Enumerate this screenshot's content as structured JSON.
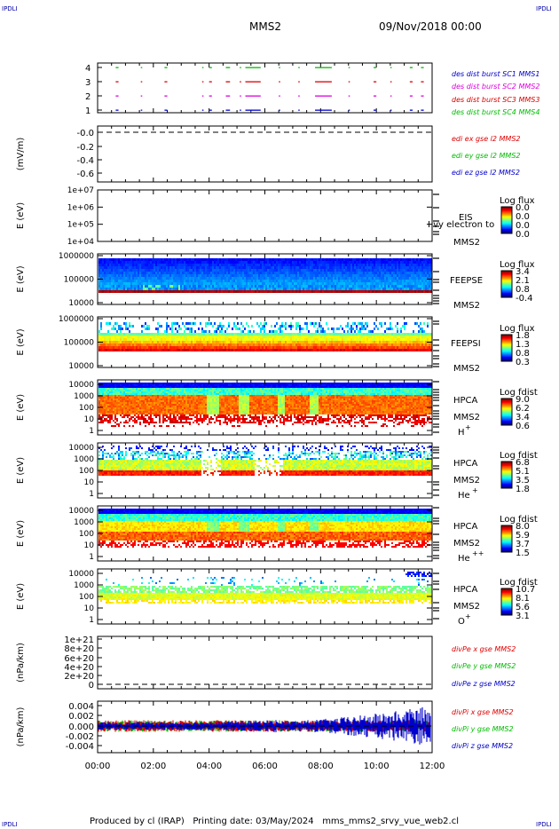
{
  "corner_marks": {
    "tl": "IPDLI",
    "tr": "IPDLI",
    "bl": "IPDLI",
    "br": "IPDLI"
  },
  "header": {
    "spacecraft": "MMS2",
    "datetime": "09/Nov/2018 00:00"
  },
  "footer": {
    "text": "Produced by cl (IRAP)   Printing date: 03/May/2024   mms_mms2_srvy_vue_web2.cl"
  },
  "time_axis": {
    "ticks": [
      "00:00",
      "02:00",
      "04:00",
      "06:00",
      "08:00",
      "10:00",
      "12:00"
    ]
  },
  "colors": {
    "black": "#000000",
    "blue": "#0000cc",
    "magenta": "#dd00dd",
    "red": "#dd0000",
    "green": "#00bb00"
  },
  "panels": {
    "burst": {
      "ticks": [
        "4",
        "3",
        "2",
        "1"
      ],
      "legend": [
        "des dist burst SC1 MMS1",
        "des dist burst SC2 MMS2",
        "des dist burst SC3 MMS3",
        "des dist burst SC4 MMS4"
      ]
    },
    "edi": {
      "ylabel": "(mV/m)",
      "ticks": [
        "-0.0",
        "-0.2",
        "-0.4",
        "-0.6"
      ],
      "legend": [
        "edi ex gse l2 MMS2",
        "edi ey gse l2 MMS2",
        "edi ez gse l2 MMS2"
      ]
    },
    "eis": {
      "ylabel": "E (eV)",
      "ticks": [
        "1e+07",
        "1e+06",
        "1e+05",
        "1e+04"
      ],
      "name": "EIS",
      "overlay": "I  vy electron to",
      "sc": "MMS2",
      "cb_title": "Log flux",
      "cb_ticks": [
        "0.0",
        "0.0",
        "0.0",
        "0.0"
      ]
    },
    "feepse": {
      "ylabel": "E (eV)",
      "ticks": [
        "1000000",
        "100000",
        "10000"
      ],
      "name": "FEEPSE",
      "sc": "MMS2",
      "cb_title": "Log flux",
      "cb_ticks": [
        "3.4",
        "2.1",
        "0.8",
        "-0.4"
      ]
    },
    "feepsi": {
      "ylabel": "E (eV)",
      "ticks": [
        "1000000",
        "100000",
        "10000"
      ],
      "name": "FEEPSI",
      "sc": "MMS2",
      "cb_title": "Log flux",
      "cb_ticks": [
        "1.8",
        "1.3",
        "0.8",
        "0.3"
      ]
    },
    "hpca_h": {
      "ylabel": "E (eV)",
      "ticks": [
        "10000",
        "1000",
        "100",
        "10",
        "1"
      ],
      "name": "HPCA",
      "sc": "MMS2",
      "species": "H",
      "charge": "+",
      "cb_title": "Log fdist",
      "cb_ticks": [
        "9.0",
        "6.2",
        "3.4",
        "0.6"
      ]
    },
    "hpca_he": {
      "ylabel": "E (eV)",
      "ticks": [
        "10000",
        "1000",
        "100",
        "10",
        "1"
      ],
      "name": "HPCA",
      "sc": "MMS2",
      "species": "He",
      "charge": "+",
      "cb_title": "Log fdist",
      "cb_ticks": [
        "6.8",
        "5.1",
        "3.5",
        "1.8"
      ]
    },
    "hpca_he2": {
      "ylabel": "E (eV)",
      "ticks": [
        "10000",
        "1000",
        "100",
        "10",
        "1"
      ],
      "name": "HPCA",
      "sc": "MMS2",
      "species": "He",
      "charge": "++",
      "cb_title": "Log fdist",
      "cb_ticks": [
        "8.0",
        "5.9",
        "3.7",
        "1.5"
      ]
    },
    "hpca_o": {
      "ylabel": "E (eV)",
      "ticks": [
        "10000",
        "1000",
        "100",
        "10",
        "1"
      ],
      "name": "HPCA",
      "sc": "MMS2",
      "species": "O",
      "charge": "+",
      "cb_title": "Log fdist",
      "cb_ticks": [
        "10.7",
        "8.1",
        "5.6",
        "3.1"
      ]
    },
    "divpe": {
      "ylabel": "(nPa/km)",
      "ticks": [
        "1e+21",
        "8e+20",
        "6e+20",
        "4e+20",
        "2e+20",
        "0"
      ],
      "legend": [
        "divPe x gse MMS2",
        "divPe y gse MMS2",
        "divPe z gse MMS2"
      ]
    },
    "divpi": {
      "ylabel": "(nPa/km)",
      "ticks": [
        "0.004",
        "0.002",
        "0.000",
        "-0.002",
        "-0.004"
      ],
      "legend": [
        "divPi x gse MMS2",
        "divPi y gse MMS2",
        "divPi z gse MMS2"
      ]
    }
  },
  "chart_data": [
    {
      "type": "scatter",
      "panel": "burst",
      "xlabel": "",
      "ylabel": "",
      "x_range": [
        "00:00",
        "12:00"
      ],
      "ylim": [
        0.5,
        4.5
      ],
      "grid": false,
      "series": [
        {
          "name": "des dist burst SC1 MMS1",
          "y": 1,
          "color": "#0000cc"
        },
        {
          "name": "des dist burst SC2 MMS2",
          "y": 2,
          "color": "#dd00dd"
        },
        {
          "name": "des dist burst SC3 MMS3",
          "y": 3,
          "color": "#dd0000"
        },
        {
          "name": "des dist burst SC4 MMS4",
          "y": 4,
          "color": "#00bb00"
        }
      ],
      "bursts_hours": [
        [
          0.65,
          0.75
        ],
        [
          1.55,
          1.6
        ],
        [
          2.4,
          2.5
        ],
        [
          3.75,
          3.8
        ],
        [
          4.0,
          4.1
        ],
        [
          4.6,
          4.75
        ],
        [
          5.1,
          5.15
        ],
        [
          5.3,
          5.85
        ],
        [
          6.5,
          6.55
        ],
        [
          7.2,
          7.25
        ],
        [
          7.8,
          8.4
        ],
        [
          9.0,
          9.05
        ],
        [
          9.9,
          10.0
        ],
        [
          10.5,
          10.55
        ],
        [
          11.2,
          11.3
        ],
        [
          11.6,
          11.7
        ]
      ]
    },
    {
      "type": "line",
      "panel": "edi",
      "ylabel": "(mV/m)",
      "ylim": [
        -0.7,
        0.05
      ],
      "series": [
        {
          "name": "edi ex gse l2 MMS2",
          "values": []
        },
        {
          "name": "edi ey gse l2 MMS2",
          "values": []
        },
        {
          "name": "edi ez gse l2 MMS2",
          "values": []
        }
      ],
      "reference_line": -0.0
    },
    {
      "type": "heatmap",
      "panel": "eis",
      "ylabel": "E (eV)",
      "yscale": "log",
      "ylim": [
        10000.0,
        10000000.0
      ],
      "values": []
    },
    {
      "type": "heatmap",
      "panel": "feepse",
      "ylabel": "E (eV)",
      "yscale": "log",
      "ylim": [
        10000.0,
        1000000.0
      ],
      "clim": [
        -0.4,
        3.4
      ]
    },
    {
      "type": "heatmap",
      "panel": "feepsi",
      "ylabel": "E (eV)",
      "yscale": "log",
      "ylim": [
        10000.0,
        1000000.0
      ],
      "clim": [
        0.3,
        1.8
      ]
    },
    {
      "type": "heatmap",
      "panel": "hpca_h",
      "ylabel": "E (eV)",
      "yscale": "log",
      "ylim": [
        1,
        30000.0
      ],
      "clim": [
        0.6,
        9.0
      ]
    },
    {
      "type": "heatmap",
      "panel": "hpca_he",
      "ylabel": "E (eV)",
      "yscale": "log",
      "ylim": [
        1,
        30000.0
      ],
      "clim": [
        1.8,
        6.8
      ]
    },
    {
      "type": "heatmap",
      "panel": "hpca_he2",
      "ylabel": "E (eV)",
      "yscale": "log",
      "ylim": [
        1,
        30000.0
      ],
      "clim": [
        1.5,
        8.0
      ]
    },
    {
      "type": "heatmap",
      "panel": "hpca_o",
      "ylabel": "E (eV)",
      "yscale": "log",
      "ylim": [
        1,
        30000.0
      ],
      "clim": [
        3.1,
        10.7
      ]
    },
    {
      "type": "line",
      "panel": "divpe",
      "ylabel": "(nPa/km)",
      "ylim": [
        0,
        1e+21
      ],
      "reference_line": 0,
      "series": [
        {
          "name": "divPe x gse MMS2",
          "values": []
        },
        {
          "name": "divPe y gse MMS2",
          "values": []
        },
        {
          "name": "divPe z gse MMS2",
          "values": []
        }
      ]
    },
    {
      "type": "line",
      "panel": "divpi",
      "ylabel": "(nPa/km)",
      "ylim": [
        -0.005,
        0.005
      ],
      "reference_line": 0,
      "series": [
        {
          "name": "divPi x gse MMS2",
          "amplitude_start": 0.001,
          "amplitude_end": 0.001
        },
        {
          "name": "divPi y gse MMS2",
          "amplitude_start": 0.001,
          "amplitude_end": 0.001
        },
        {
          "name": "divPi z gse MMS2",
          "amplitude_start": 0.0006,
          "amplitude_end": 0.004
        }
      ]
    }
  ]
}
